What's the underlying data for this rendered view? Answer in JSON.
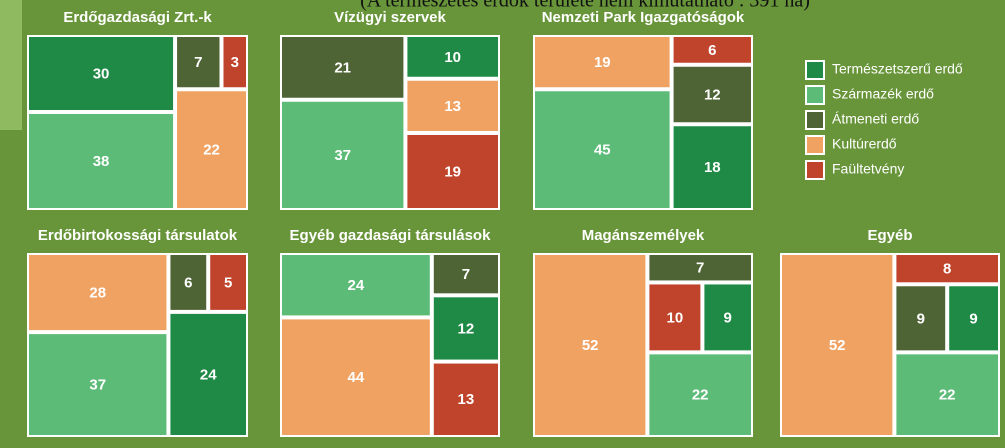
{
  "header": {
    "note": "(A természetes erdők területe nem kimutatható : 391 ha)"
  },
  "legend": {
    "names": [
      "Természetszerű erdő",
      "Származék erdő",
      "Átmeneti erdő",
      "Kultúrerdő",
      "Faültetvény"
    ],
    "colors": [
      "#1f8a45",
      "#5dbb78",
      "#4e6434",
      "#f0a262",
      "#c0432b"
    ]
  },
  "chart_data": [
    {
      "type": "treemap",
      "title": "Erdőgazdasági Zrt.-k",
      "values": [
        30,
        38,
        7,
        22,
        3
      ]
    },
    {
      "type": "treemap",
      "title": "Vízügyi szervek",
      "values": [
        10,
        37,
        21,
        13,
        19
      ]
    },
    {
      "type": "treemap",
      "title": "Nemzeti Park Igazgatóságok",
      "values": [
        18,
        45,
        12,
        19,
        6
      ]
    },
    {
      "type": "treemap",
      "title": "Erdőbirtokossági társulatok",
      "values": [
        24,
        37,
        6,
        28,
        5
      ]
    },
    {
      "type": "treemap",
      "title": "Egyéb gazdasági társulások",
      "values": [
        12,
        24,
        7,
        44,
        13
      ]
    },
    {
      "type": "treemap",
      "title": "Magánszemélyek",
      "values": [
        9,
        22,
        7,
        52,
        10
      ]
    },
    {
      "type": "treemap",
      "title": "Egyéb",
      "values": [
        9,
        22,
        9,
        52,
        8
      ]
    }
  ]
}
